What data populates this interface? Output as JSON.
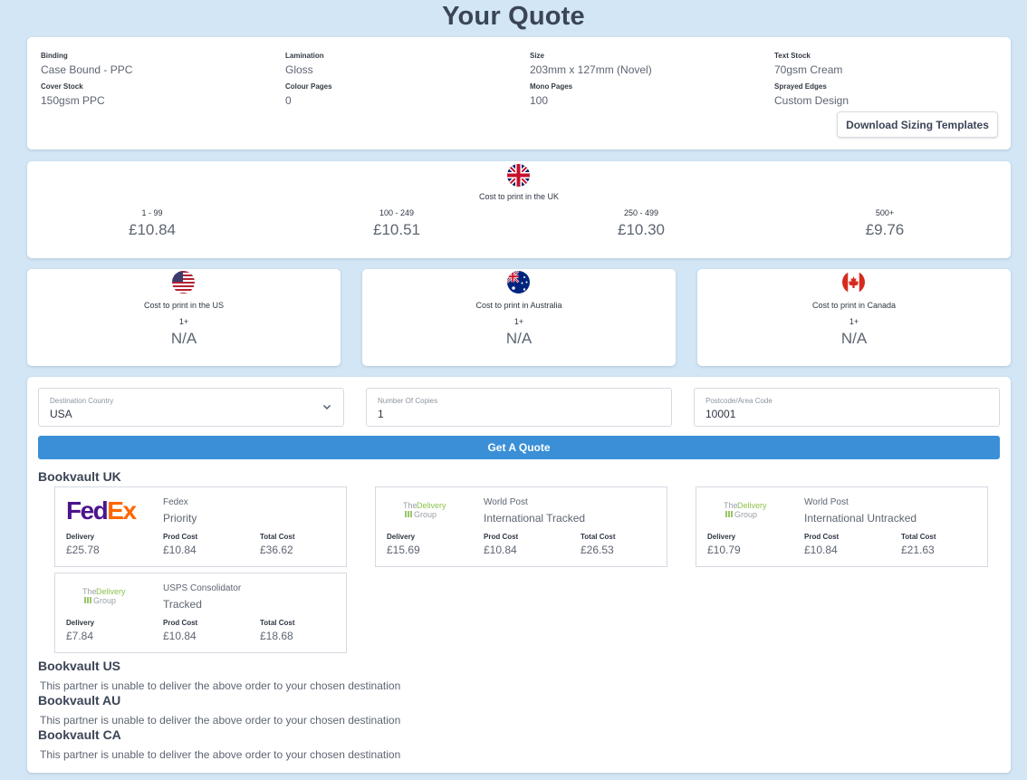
{
  "title": "Your Quote",
  "spec": [
    {
      "label": "Binding",
      "value": "Case Bound - PPC"
    },
    {
      "label": "Lamination",
      "value": "Gloss"
    },
    {
      "label": "Size",
      "value": "203mm x 127mm (Novel)"
    },
    {
      "label": "Text Stock",
      "value": "70gsm Cream"
    },
    {
      "label": "Cover Stock",
      "value": "150gsm PPC"
    },
    {
      "label": "Colour Pages",
      "value": "0"
    },
    {
      "label": "Mono Pages",
      "value": "100"
    },
    {
      "label": "Sprayed Edges",
      "value": "Custom Design"
    }
  ],
  "download_button": "Download Sizing Templates",
  "uk": {
    "caption": "Cost to print in the UK",
    "tiers": [
      {
        "range": "1 - 99",
        "price": "£10.84"
      },
      {
        "range": "100 - 249",
        "price": "£10.51"
      },
      {
        "range": "250 - 499",
        "price": "£10.30"
      },
      {
        "range": "500+",
        "price": "£9.76"
      }
    ]
  },
  "intl": [
    {
      "caption": "Cost to print in the US",
      "qty": "1+",
      "price": "N/A",
      "flag": "us-flag"
    },
    {
      "caption": "Cost to print in Australia",
      "qty": "1+",
      "price": "N/A",
      "flag": "au-flag"
    },
    {
      "caption": "Cost to print in Canada",
      "qty": "1+",
      "price": "N/A",
      "flag": "ca-flag"
    }
  ],
  "form": {
    "country_label": "Destination Country",
    "country_value": "USA",
    "copies_label": "Number Of Copies",
    "copies_value": "1",
    "postcode_label": "Postcode/Area Code",
    "postcode_value": "10001",
    "quote_button": "Get A Quote"
  },
  "logos": {
    "fedex": {
      "fe": "Fed",
      "ex": "Ex"
    },
    "delivery_group": {
      "line1a": "The ",
      "line1b": "Delivery",
      "line2": "Group"
    }
  },
  "column_labels": {
    "delivery": "Delivery",
    "prod": "Prod Cost",
    "total": "Total Cost"
  },
  "uk_partner": {
    "heading": "Bookvault UK",
    "options": [
      {
        "logo": "fedex",
        "carrier": "Fedex",
        "service": "Priority",
        "delivery": "£25.78",
        "prod": "£10.84",
        "total": "£36.62"
      },
      {
        "logo": "delivery-group",
        "carrier": "World Post",
        "service": "International Tracked",
        "delivery": "£15.69",
        "prod": "£10.84",
        "total": "£26.53"
      },
      {
        "logo": "delivery-group",
        "carrier": "World Post",
        "service": "International Untracked",
        "delivery": "£10.79",
        "prod": "£10.84",
        "total": "£21.63"
      },
      {
        "logo": "delivery-group",
        "carrier": "USPS Consolidator",
        "service": "Tracked",
        "delivery": "£7.84",
        "prod": "£10.84",
        "total": "£18.68"
      }
    ]
  },
  "other_partners": [
    {
      "heading": "Bookvault US",
      "message": "This partner is unable to deliver the above order to your chosen destination"
    },
    {
      "heading": "Bookvault AU",
      "message": "This partner is unable to deliver the above order to your chosen destination"
    },
    {
      "heading": "Bookvault CA",
      "message": "This partner is unable to deliver the above order to your chosen destination"
    }
  ],
  "colors": {
    "background": "#d2e6f6",
    "accent": "#3a8fd7",
    "fedex_purple": "#4d148c",
    "fedex_orange": "#ff6600",
    "delivery_green": "#8bc34a"
  }
}
